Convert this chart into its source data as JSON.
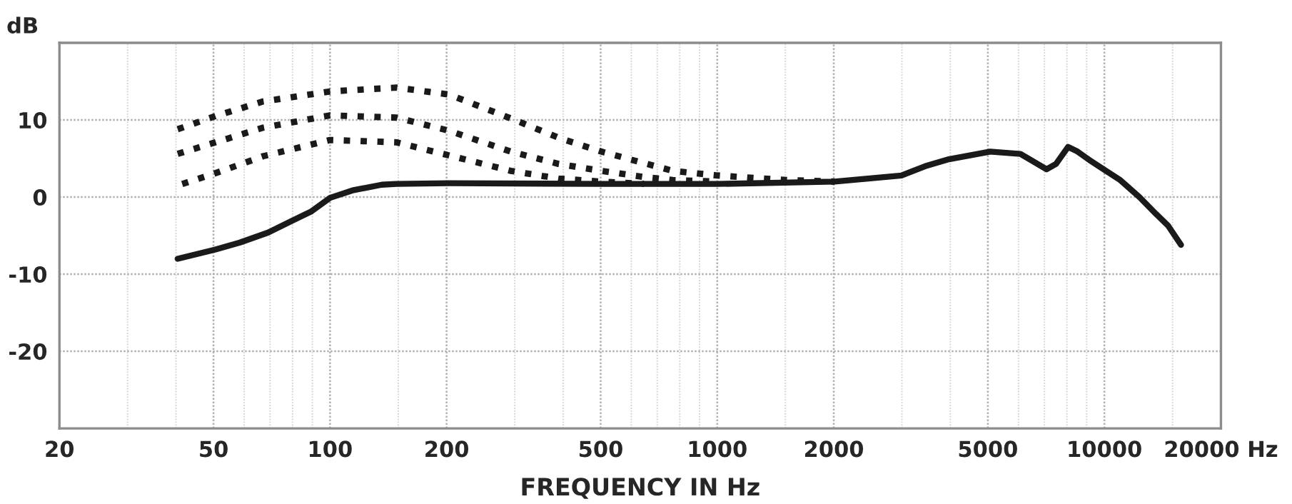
{
  "chart_data": {
    "type": "line",
    "xlabel": "FREQUENCY IN Hz",
    "ylabel": "dB",
    "log": "x",
    "xlim": [
      20,
      20000
    ],
    "xticks": [
      20,
      50,
      100,
      200,
      500,
      1000,
      2000,
      5000,
      10000,
      {
        "value": 20000,
        "label": "20000 Hz"
      }
    ],
    "ylim": [
      -30,
      20
    ],
    "yticks": [
      -20,
      -10,
      0,
      10
    ],
    "grid": true,
    "legend": false,
    "series": [
      {
        "color": "#1a1a1a",
        "line_style": "dotted",
        "x": [
          40.4,
          50.6,
          67.2,
          100,
          148.5,
          203,
          293,
          389,
          502,
          647,
          768,
          1000,
          1513,
          2010
        ],
        "values": [
          8.8,
          10.5,
          12.4,
          13.7,
          14.2,
          13.3,
          10.2,
          7.7,
          5.9,
          4.4,
          3.4,
          2.8,
          2.2,
          2.0
        ]
      },
      {
        "color": "#1a1a1a",
        "line_style": "dotted",
        "x": [
          40.4,
          50.6,
          67.2,
          100,
          148.5,
          203,
          293,
          389,
          502,
          647,
          768,
          1000
        ],
        "values": [
          5.6,
          7.1,
          9.0,
          10.6,
          10.3,
          8.6,
          5.9,
          4.3,
          3.4,
          2.6,
          2.2,
          2.0
        ]
      },
      {
        "color": "#1a1a1a",
        "line_style": "dotted",
        "x": [
          41.5,
          50.6,
          67.2,
          100,
          148.5,
          203,
          293,
          389,
          502,
          647
        ],
        "values": [
          1.7,
          3.1,
          5.3,
          7.4,
          7.1,
          5.4,
          3.4,
          2.4,
          2.0,
          1.7
        ]
      },
      {
        "color": "#1a1a1a",
        "line_style": "solid",
        "x": [
          40.4,
          50.6,
          58.5,
          69.2,
          79.6,
          89.2,
          100,
          115,
          136,
          148.5,
          203,
          502,
          1000,
          2010,
          2990,
          3445,
          3965,
          5070,
          6070,
          6515,
          7090,
          7500,
          8055,
          8525,
          9150,
          10090,
          10990,
          12320,
          13600,
          14600,
          15770
        ],
        "values": [
          -8.0,
          -6.8,
          -5.9,
          -4.6,
          -3.1,
          -1.9,
          -0.1,
          0.9,
          1.6,
          1.7,
          1.8,
          1.7,
          1.7,
          2.0,
          2.8,
          4.0,
          4.9,
          5.9,
          5.6,
          4.7,
          3.6,
          4.3,
          6.5,
          5.9,
          4.8,
          3.4,
          2.2,
          0.0,
          -2.2,
          -3.7,
          -6.2
        ]
      }
    ]
  }
}
